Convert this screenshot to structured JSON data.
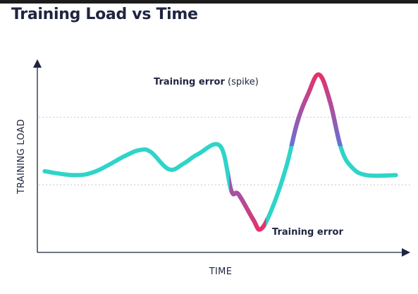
{
  "chart_data": {
    "type": "line",
    "title": "Training Load vs Time",
    "xlabel": "TIME",
    "ylabel": "TRAINING LOAD",
    "xlim": [
      0,
      100
    ],
    "ylim": [
      0,
      100
    ],
    "grid": false,
    "reference_lines": [
      35,
      70
    ],
    "series": [
      {
        "color": "#2fd4c9",
        "points": [
          [
            2,
            42
          ],
          [
            10,
            40
          ],
          [
            16,
            42
          ],
          [
            24,
            50
          ],
          [
            28,
            53
          ],
          [
            31,
            52
          ],
          [
            36,
            43
          ],
          [
            40,
            46
          ],
          [
            44,
            51
          ],
          [
            50,
            55
          ],
          [
            53,
            32
          ],
          [
            55,
            30
          ],
          [
            59,
            17
          ],
          [
            61,
            12
          ],
          [
            64,
            22
          ],
          [
            68,
            44
          ],
          [
            71,
            67
          ],
          [
            74,
            82
          ],
          [
            77,
            92
          ],
          [
            80,
            78
          ],
          [
            83,
            54
          ],
          [
            86,
            44
          ],
          [
            90,
            40
          ],
          [
            98,
            40
          ]
        ]
      }
    ],
    "annotations": [
      {
        "bold": "Training error",
        "normal": " (spike)"
      },
      {
        "bold": "Training error",
        "normal": ""
      }
    ],
    "colors": {
      "line_primary": "#2fd4c9",
      "error_mid": "#6b6fd6",
      "error_peak": "#e8306a",
      "axis": "#1f2540",
      "reference": "#c8c8cc",
      "text": "#1f2540"
    }
  }
}
